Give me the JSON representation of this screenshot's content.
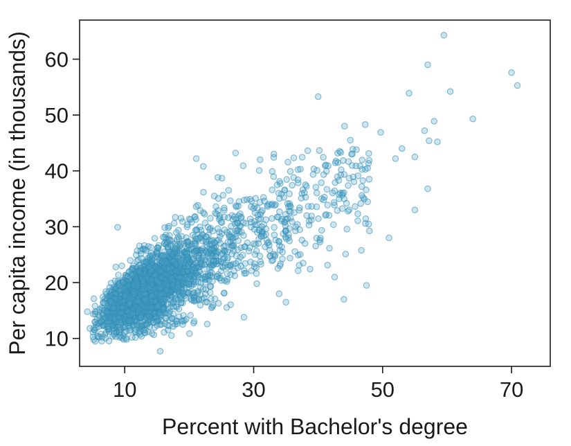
{
  "chart_data": {
    "type": "scatter",
    "title": "",
    "xlabel": "Percent with Bachelor's degree",
    "ylabel": "Per capita income (in thousands)",
    "xlim": [
      3,
      76
    ],
    "ylim": [
      5,
      67
    ],
    "xticks": [
      10,
      30,
      50,
      70
    ],
    "yticks": [
      10,
      20,
      30,
      40,
      50,
      60
    ],
    "grid": false,
    "legend": "none",
    "point_color": "#4aa0c4",
    "outlier_points": [
      {
        "x": 59.5,
        "y": 64.3
      },
      {
        "x": 70,
        "y": 57.6
      },
      {
        "x": 70.9,
        "y": 55.3
      },
      {
        "x": 57,
        "y": 59
      },
      {
        "x": 60.5,
        "y": 54.2
      },
      {
        "x": 54.1,
        "y": 53.9
      },
      {
        "x": 40,
        "y": 53.3
      },
      {
        "x": 64,
        "y": 49.3
      },
      {
        "x": 58,
        "y": 48.9
      },
      {
        "x": 56.5,
        "y": 47.2
      },
      {
        "x": 57.2,
        "y": 45.4
      },
      {
        "x": 58.5,
        "y": 45.2
      },
      {
        "x": 55,
        "y": 42.5
      },
      {
        "x": 53,
        "y": 44
      },
      {
        "x": 52,
        "y": 42.2
      },
      {
        "x": 47.3,
        "y": 48.3
      },
      {
        "x": 49.7,
        "y": 46.9
      },
      {
        "x": 44.1,
        "y": 48
      },
      {
        "x": 45,
        "y": 45.5
      },
      {
        "x": 43.5,
        "y": 43.3
      },
      {
        "x": 21.1,
        "y": 42.2
      },
      {
        "x": 22.2,
        "y": 40.8
      },
      {
        "x": 27.2,
        "y": 43.2
      },
      {
        "x": 31,
        "y": 42
      },
      {
        "x": 57,
        "y": 36.8
      },
      {
        "x": 55,
        "y": 33
      },
      {
        "x": 51,
        "y": 28
      },
      {
        "x": 47.5,
        "y": 19.5
      },
      {
        "x": 44,
        "y": 17
      },
      {
        "x": 35,
        "y": 16.5
      },
      {
        "x": 19,
        "y": 12.5
      },
      {
        "x": 15.5,
        "y": 7.7
      },
      {
        "x": 28.5,
        "y": 13.8
      },
      {
        "x": 8.9,
        "y": 29.9
      },
      {
        "x": 4.2,
        "y": 14.8
      },
      {
        "x": 4.6,
        "y": 11.8
      },
      {
        "x": 5.6,
        "y": 11.9
      },
      {
        "x": 6.3,
        "y": 10.8
      },
      {
        "x": 9.2,
        "y": 10.2
      },
      {
        "x": 16.1,
        "y": 11.1
      }
    ]
  }
}
